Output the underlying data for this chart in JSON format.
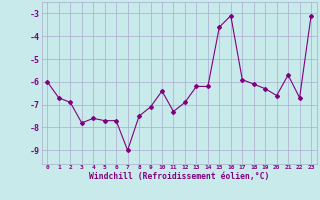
{
  "x": [
    0,
    1,
    2,
    3,
    4,
    5,
    6,
    7,
    8,
    9,
    10,
    11,
    12,
    13,
    14,
    15,
    16,
    17,
    18,
    19,
    20,
    21,
    22,
    23
  ],
  "y": [
    -6.0,
    -6.7,
    -6.9,
    -7.8,
    -7.6,
    -7.7,
    -7.7,
    -9.0,
    -7.5,
    -7.1,
    -6.4,
    -7.3,
    -6.9,
    -6.2,
    -6.2,
    -3.6,
    -3.1,
    -5.9,
    -6.1,
    -6.3,
    -6.6,
    -5.7,
    -6.7,
    -3.1
  ],
  "line_color": "#800080",
  "marker": "D",
  "marker_size": 2,
  "bg_color": "#c8eaeb",
  "grid_color": "#aaaacc",
  "xlabel": "Windchill (Refroidissement éolien,°C)",
  "xlabel_color": "#800080",
  "tick_color": "#800080",
  "ylabel_ticks": [
    -9,
    -8,
    -7,
    -6,
    -5,
    -4,
    -3
  ],
  "xlim": [
    -0.5,
    23.5
  ],
  "ylim": [
    -9.6,
    -2.5
  ]
}
